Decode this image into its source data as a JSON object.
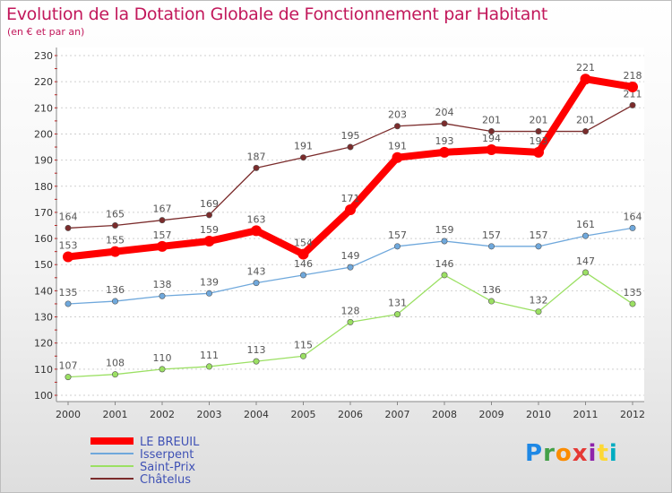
{
  "title": "Evolution de la Dotation Globale de Fonctionnement par Habitant",
  "subtitle": "(en € et par an)",
  "logo": {
    "text": "Proxiti",
    "letter_colors": [
      "#1e88e5",
      "#43a047",
      "#fb8c00",
      "#e53935",
      "#8e24aa",
      "#fdd835",
      "#00acc1"
    ]
  },
  "chart_data": {
    "type": "line",
    "title": "Evolution de la Dotation Globale de Fonctionnement par Habitant",
    "subtitle": "(en € et par an)",
    "x": [
      "2000",
      "2001",
      "2002",
      "2003",
      "2004",
      "2005",
      "2006",
      "2007",
      "2008",
      "2009",
      "2010",
      "2011",
      "2012"
    ],
    "ylim": [
      100,
      230
    ],
    "yticks": [
      100,
      110,
      120,
      130,
      140,
      150,
      160,
      170,
      180,
      190,
      200,
      210,
      220,
      230
    ],
    "grid": "horizontal dashed",
    "legend_position": "bottom-left",
    "series": [
      {
        "name": "LE BREUIL",
        "color": "#ff0000",
        "emphasis": true,
        "values": [
          153,
          155,
          157,
          159,
          163,
          154,
          171,
          191,
          193,
          194,
          193,
          221,
          218
        ]
      },
      {
        "name": "Isserpent",
        "color": "#6fa8dc",
        "emphasis": false,
        "values": [
          135,
          136,
          138,
          139,
          143,
          146,
          149,
          157,
          159,
          157,
          157,
          161,
          164
        ]
      },
      {
        "name": "Saint-Prix",
        "color": "#9be063",
        "emphasis": false,
        "values": [
          107,
          108,
          110,
          111,
          113,
          115,
          128,
          131,
          146,
          136,
          132,
          147,
          135
        ]
      },
      {
        "name": "Châtelus",
        "color": "#7b2c2c",
        "emphasis": false,
        "values": [
          164,
          165,
          167,
          169,
          187,
          191,
          195,
          203,
          204,
          201,
          201,
          201,
          211
        ]
      }
    ]
  }
}
